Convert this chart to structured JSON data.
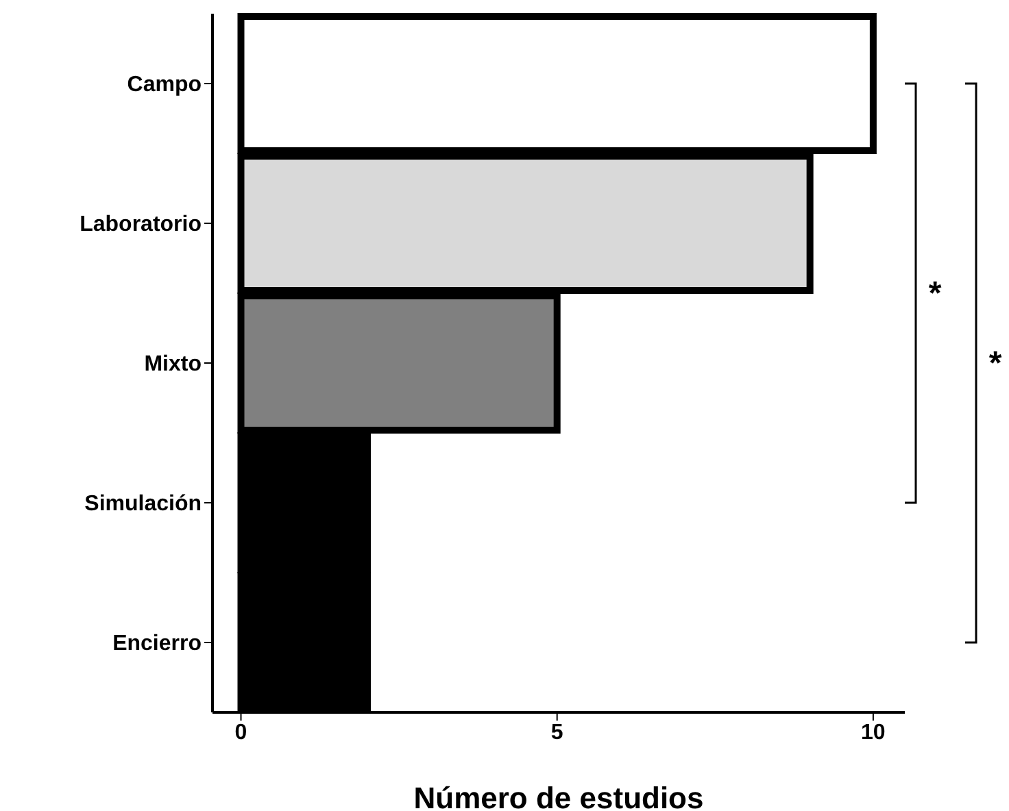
{
  "chart_data": {
    "type": "bar",
    "orientation": "horizontal",
    "xlabel": "Número de estudios",
    "categories": [
      "Campo",
      "Laboratorio",
      "Mixto",
      "Simulación",
      "Encierro"
    ],
    "values": [
      10,
      9,
      5,
      2,
      2
    ],
    "colors": [
      "#ffffff",
      "#d9d9d9",
      "#808080",
      "#000000",
      "#000000"
    ],
    "xlim": [
      -0.45,
      10.5
    ],
    "xticks": [
      0,
      5,
      10
    ],
    "grid": false,
    "annotations": [
      "*",
      "*"
    ]
  }
}
